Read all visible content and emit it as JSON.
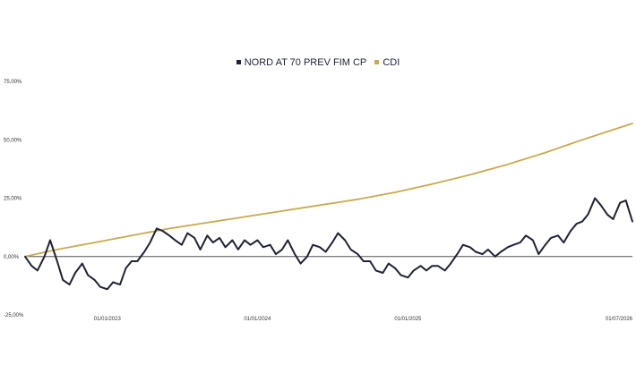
{
  "chart_data": {
    "type": "line",
    "title": "",
    "xlabel": "",
    "ylabel": "",
    "ylim": [
      -0.25,
      0.75
    ],
    "yticks": [
      -0.25,
      0,
      0.25,
      0.5,
      0.75
    ],
    "ytick_labels": [
      "-25,00%",
      "0,00%",
      "25,00%",
      "50,00%",
      "75,00%"
    ],
    "xlim": [
      "2022-06-15",
      "2026-07-01"
    ],
    "xticks": [
      "2023-01-01",
      "2024-01-01",
      "2025-01-01",
      "2026-07-01"
    ],
    "xtick_labels": [
      "01/01/2023",
      "01/01/2024",
      "01/01/2025",
      "01/07/2026"
    ],
    "grid": false,
    "legend_position": "top-center",
    "series": [
      {
        "name": "NORD AT 70 PREV FIM CP",
        "color": "#1f2237",
        "x": [
          "2022-06-15",
          "2022-07-01",
          "2022-07-15",
          "2022-08-01",
          "2022-08-15",
          "2022-09-01",
          "2022-09-15",
          "2022-10-01",
          "2022-10-15",
          "2022-11-01",
          "2022-11-15",
          "2022-12-01",
          "2022-12-15",
          "2023-01-01",
          "2023-01-15",
          "2023-02-01",
          "2023-02-15",
          "2023-03-01",
          "2023-03-15",
          "2023-04-01",
          "2023-04-15",
          "2023-05-01",
          "2023-05-15",
          "2023-06-01",
          "2023-06-15",
          "2023-07-01",
          "2023-07-15",
          "2023-08-01",
          "2023-08-15",
          "2023-09-01",
          "2023-09-15",
          "2023-10-01",
          "2023-10-15",
          "2023-11-01",
          "2023-11-15",
          "2023-12-01",
          "2023-12-15",
          "2024-01-01",
          "2024-01-15",
          "2024-02-01",
          "2024-02-15",
          "2024-03-01",
          "2024-03-15",
          "2024-04-01",
          "2024-04-15",
          "2024-05-01",
          "2024-05-15",
          "2024-06-01",
          "2024-06-15",
          "2024-07-01",
          "2024-07-15",
          "2024-08-01",
          "2024-08-15",
          "2024-09-01",
          "2024-09-15",
          "2024-10-01",
          "2024-10-15",
          "2024-11-01",
          "2024-11-15",
          "2024-12-01",
          "2024-12-15",
          "2025-01-01",
          "2025-01-15",
          "2025-02-01",
          "2025-02-15",
          "2025-03-01",
          "2025-03-15",
          "2025-04-01",
          "2025-04-15",
          "2025-05-01",
          "2025-05-15",
          "2025-06-01",
          "2025-06-15",
          "2025-07-01",
          "2025-07-15",
          "2025-08-01",
          "2025-08-15",
          "2025-09-01",
          "2025-09-15",
          "2025-10-01",
          "2025-10-15",
          "2025-11-01",
          "2025-11-15",
          "2025-12-01",
          "2025-12-15",
          "2026-01-01",
          "2026-01-15",
          "2026-02-01",
          "2026-02-15",
          "2026-03-01",
          "2026-03-15",
          "2026-04-01",
          "2026-04-15",
          "2026-05-01",
          "2026-05-15",
          "2026-06-01",
          "2026-06-15",
          "2026-07-01"
        ],
        "values": [
          0.0,
          -0.04,
          -0.06,
          0.0,
          0.07,
          -0.02,
          -0.1,
          -0.12,
          -0.07,
          -0.03,
          -0.08,
          -0.1,
          -0.13,
          -0.14,
          -0.11,
          -0.12,
          -0.05,
          -0.02,
          -0.02,
          0.02,
          0.06,
          0.12,
          0.11,
          0.09,
          0.07,
          0.05,
          0.1,
          0.08,
          0.03,
          0.09,
          0.06,
          0.08,
          0.04,
          0.07,
          0.03,
          0.07,
          0.05,
          0.07,
          0.04,
          0.05,
          0.01,
          0.03,
          0.07,
          0.01,
          -0.03,
          0.0,
          0.05,
          0.04,
          0.02,
          0.06,
          0.1,
          0.07,
          0.03,
          0.01,
          -0.02,
          -0.02,
          -0.06,
          -0.07,
          -0.03,
          -0.05,
          -0.08,
          -0.09,
          -0.06,
          -0.04,
          -0.06,
          -0.04,
          -0.04,
          -0.06,
          -0.03,
          0.01,
          0.05,
          0.04,
          0.02,
          0.01,
          0.03,
          0.0,
          0.02,
          0.04,
          0.05,
          0.06,
          0.09,
          0.07,
          0.01,
          0.05,
          0.08,
          0.09,
          0.06,
          0.11,
          0.14,
          0.15,
          0.18,
          0.25,
          0.22,
          0.18,
          0.16,
          0.23,
          0.24,
          0.15
        ]
      },
      {
        "name": "CDI",
        "color": "#c9a94e",
        "x": [
          "2022-06-15",
          "2022-09-01",
          "2022-12-01",
          "2023-03-01",
          "2023-06-01",
          "2023-09-01",
          "2023-12-01",
          "2024-03-01",
          "2024-06-01",
          "2024-09-01",
          "2024-12-01",
          "2025-03-01",
          "2025-06-01",
          "2025-09-01",
          "2025-12-01",
          "2026-03-01",
          "2026-07-01"
        ],
        "values": [
          0.0,
          0.03,
          0.06,
          0.09,
          0.12,
          0.145,
          0.17,
          0.195,
          0.22,
          0.245,
          0.275,
          0.31,
          0.35,
          0.395,
          0.445,
          0.5,
          0.57
        ]
      }
    ]
  }
}
